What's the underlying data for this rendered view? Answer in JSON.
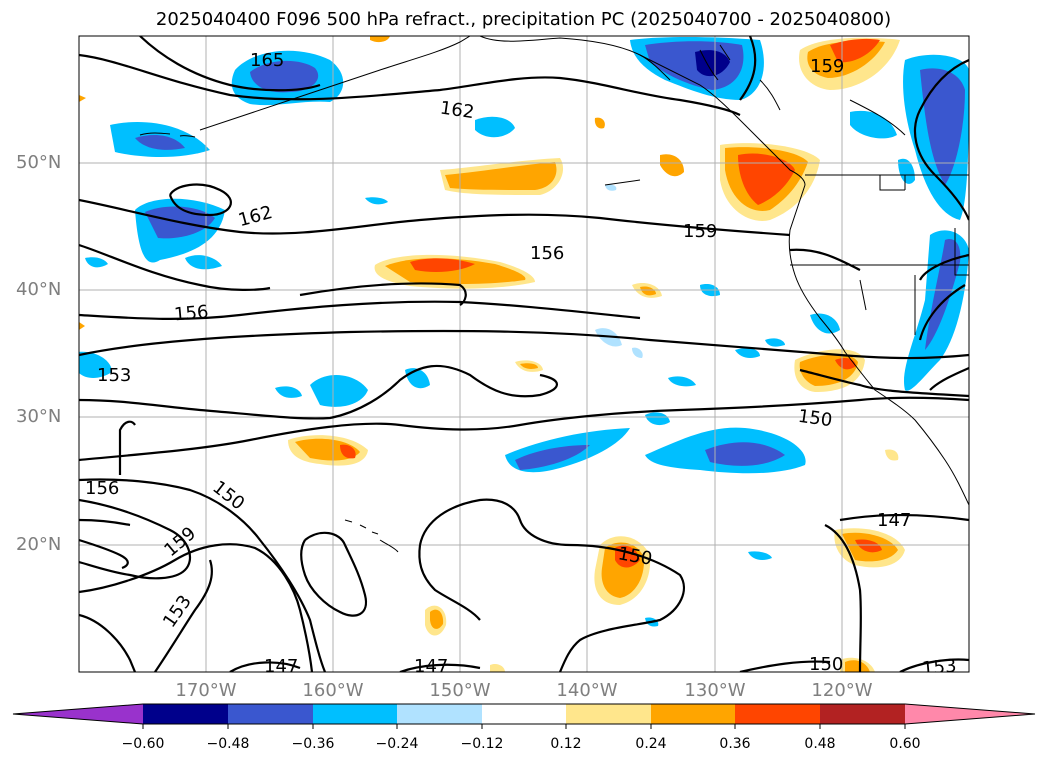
{
  "title": "2025040400 F096 500 hPa refract., precipitation PC (2025040700 - 2025040800)",
  "lat_labels": [
    "50°N",
    "40°N",
    "30°N",
    "20°N"
  ],
  "lon_labels": [
    "170°W",
    "160°W",
    "150°W",
    "140°W",
    "130°W",
    "120°W"
  ],
  "contour_labels": [
    "165",
    "162",
    "162",
    "159",
    "159",
    "159",
    "156",
    "156",
    "156",
    "153",
    "153",
    "153",
    "150",
    "150",
    "150",
    "150",
    "147",
    "147",
    "147"
  ],
  "colorbar": {
    "ticks": [
      "−0.60",
      "−0.48",
      "−0.36",
      "−0.24",
      "−0.12",
      "0.12",
      "0.24",
      "0.36",
      "0.48",
      "0.60"
    ],
    "colors": [
      "#9932cc",
      "#00008b",
      "#3a57cf",
      "#00bfff",
      "#b0e2ff",
      "#ffffff",
      "#ffe68c",
      "#ffa500",
      "#ff4500",
      "#b22222",
      "#ff88aa"
    ]
  }
}
